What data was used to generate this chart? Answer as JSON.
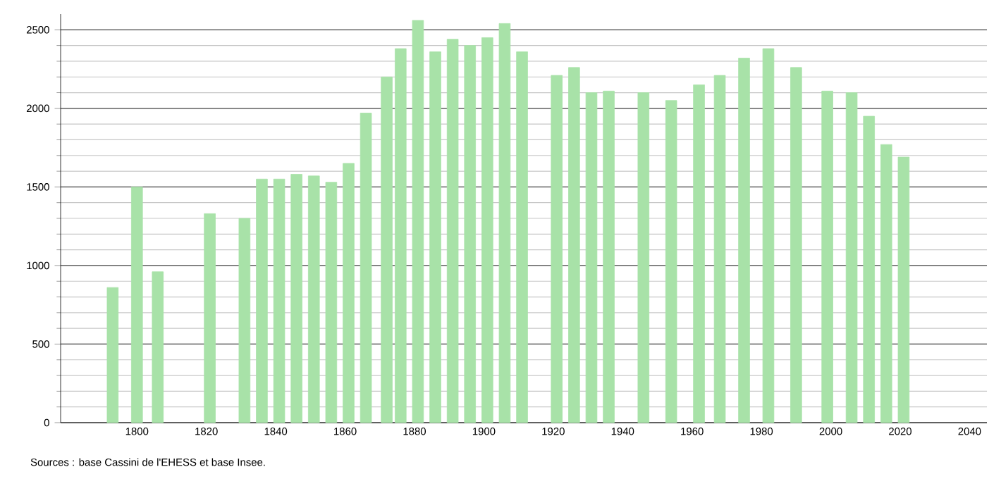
{
  "chart_data": {
    "type": "bar",
    "x": [
      1793,
      1800,
      1806,
      1821,
      1831,
      1836,
      1841,
      1846,
      1851,
      1856,
      1861,
      1866,
      1872,
      1876,
      1881,
      1886,
      1891,
      1896,
      1901,
      1906,
      1911,
      1921,
      1926,
      1931,
      1936,
      1946,
      1954,
      1962,
      1968,
      1975,
      1982,
      1990,
      1999,
      2006,
      2011,
      2016,
      2021
    ],
    "values": [
      860,
      1500,
      960,
      1330,
      1300,
      1550,
      1550,
      1580,
      1570,
      1530,
      1650,
      1970,
      2200,
      2380,
      2560,
      2360,
      2440,
      2400,
      2450,
      2540,
      2360,
      2210,
      2260,
      2100,
      2110,
      2100,
      2050,
      2150,
      2210,
      2320,
      2380,
      2260,
      2110,
      2100,
      1950,
      1770,
      1690
    ],
    "color": "#a8e2a8",
    "xlim": [
      1778,
      2045
    ],
    "ylim": [
      0,
      2600
    ],
    "xticks": [
      1800,
      1820,
      1840,
      1860,
      1880,
      1900,
      1920,
      1940,
      1960,
      1980,
      2000,
      2020,
      2040
    ],
    "yticks": [
      0,
      500,
      1000,
      1500,
      2000,
      2500
    ],
    "grid": "y",
    "annotations": [
      "Sources : base Cassini de l'EHESS et base Insee."
    ]
  }
}
